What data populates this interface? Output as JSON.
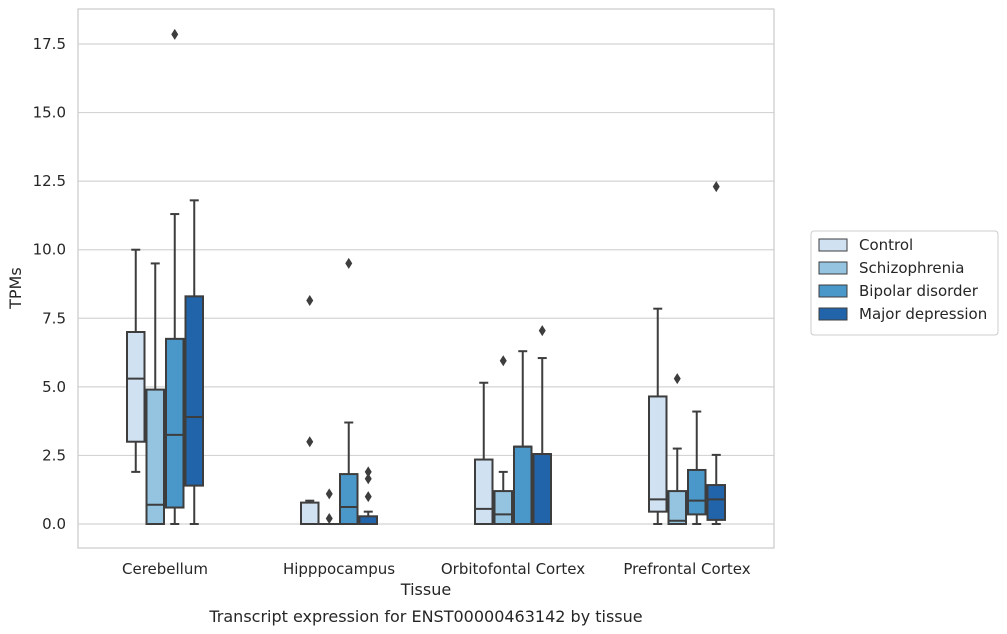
{
  "chart_data": {
    "type": "box",
    "caption": "Transcript expression for ENST00000463142 by tissue",
    "xlabel": "Tissue",
    "ylabel": "TPMs",
    "ylim": [
      -0.85,
      18.8
    ],
    "yticks": [
      0.0,
      2.5,
      5.0,
      7.5,
      10.0,
      12.5,
      15.0,
      17.5
    ],
    "ytick_labels": [
      "0.0",
      "2.5",
      "5.0",
      "7.5",
      "10.0",
      "12.5",
      "15.0",
      "17.5"
    ],
    "grid": "horizontal",
    "legend_position": "right",
    "categories": [
      "Cerebellum",
      "Hipppocampus",
      "Orbitofontal Cortex",
      "Prefrontal Cortex"
    ],
    "series": [
      {
        "name": "Control",
        "color": "#d0e1f2",
        "boxes": [
          {
            "whisker_low": 1.9,
            "q1": 3.0,
            "median": 5.3,
            "q3": 7.0,
            "whisker_high": 10.0,
            "outliers": []
          },
          {
            "whisker_low": 0.0,
            "q1": 0.0,
            "median": 0.0,
            "q3": 0.78,
            "whisker_high": 0.85,
            "outliers": [
              3.0,
              8.15
            ]
          },
          {
            "whisker_low": 0.0,
            "q1": 0.0,
            "median": 0.55,
            "q3": 2.35,
            "whisker_high": 5.15,
            "outliers": []
          },
          {
            "whisker_low": 0.0,
            "q1": 0.45,
            "median": 0.9,
            "q3": 4.65,
            "whisker_high": 7.85,
            "outliers": []
          }
        ]
      },
      {
        "name": "Schizophrenia",
        "color": "#94c4df",
        "boxes": [
          {
            "whisker_low": 0.0,
            "q1": 0.0,
            "median": 0.7,
            "q3": 4.9,
            "whisker_high": 9.5,
            "outliers": []
          },
          {
            "whisker_low": 0.0,
            "q1": 0.0,
            "median": 0.0,
            "q3": 0.0,
            "whisker_high": 0.0,
            "outliers": [
              0.2,
              1.1
            ]
          },
          {
            "whisker_low": 0.0,
            "q1": 0.0,
            "median": 0.35,
            "q3": 1.2,
            "whisker_high": 1.9,
            "outliers": [
              5.95
            ]
          },
          {
            "whisker_low": 0.0,
            "q1": 0.0,
            "median": 0.12,
            "q3": 1.2,
            "whisker_high": 2.75,
            "outliers": [
              5.3
            ]
          }
        ]
      },
      {
        "name": "Bipolar disorder",
        "color": "#4a98c9",
        "boxes": [
          {
            "whisker_low": 0.0,
            "q1": 0.6,
            "median": 3.25,
            "q3": 6.75,
            "whisker_high": 11.3,
            "outliers": [
              17.85
            ]
          },
          {
            "whisker_low": 0.0,
            "q1": 0.0,
            "median": 0.62,
            "q3": 1.82,
            "whisker_high": 3.7,
            "outliers": [
              9.5
            ]
          },
          {
            "whisker_low": 0.0,
            "q1": 0.0,
            "median": 2.82,
            "q3": 2.82,
            "whisker_high": 6.3,
            "outliers": []
          },
          {
            "whisker_low": 0.0,
            "q1": 0.35,
            "median": 0.85,
            "q3": 1.97,
            "whisker_high": 4.1,
            "outliers": []
          }
        ]
      },
      {
        "name": "Major depression",
        "color": "#2264aa",
        "boxes": [
          {
            "whisker_low": 0.0,
            "q1": 1.4,
            "median": 3.9,
            "q3": 8.3,
            "whisker_high": 11.8,
            "outliers": []
          },
          {
            "whisker_low": 0.0,
            "q1": 0.0,
            "median": 0.0,
            "q3": 0.28,
            "whisker_high": 0.45,
            "outliers": [
              1.0,
              1.65,
              1.9
            ]
          },
          {
            "whisker_low": 0.0,
            "q1": 0.0,
            "median": 2.55,
            "q3": 2.55,
            "whisker_high": 6.05,
            "outliers": [
              7.05
            ]
          },
          {
            "whisker_low": 0.0,
            "q1": 0.15,
            "median": 0.9,
            "q3": 1.42,
            "whisker_high": 2.52,
            "outliers": [
              12.3
            ]
          }
        ]
      }
    ]
  }
}
